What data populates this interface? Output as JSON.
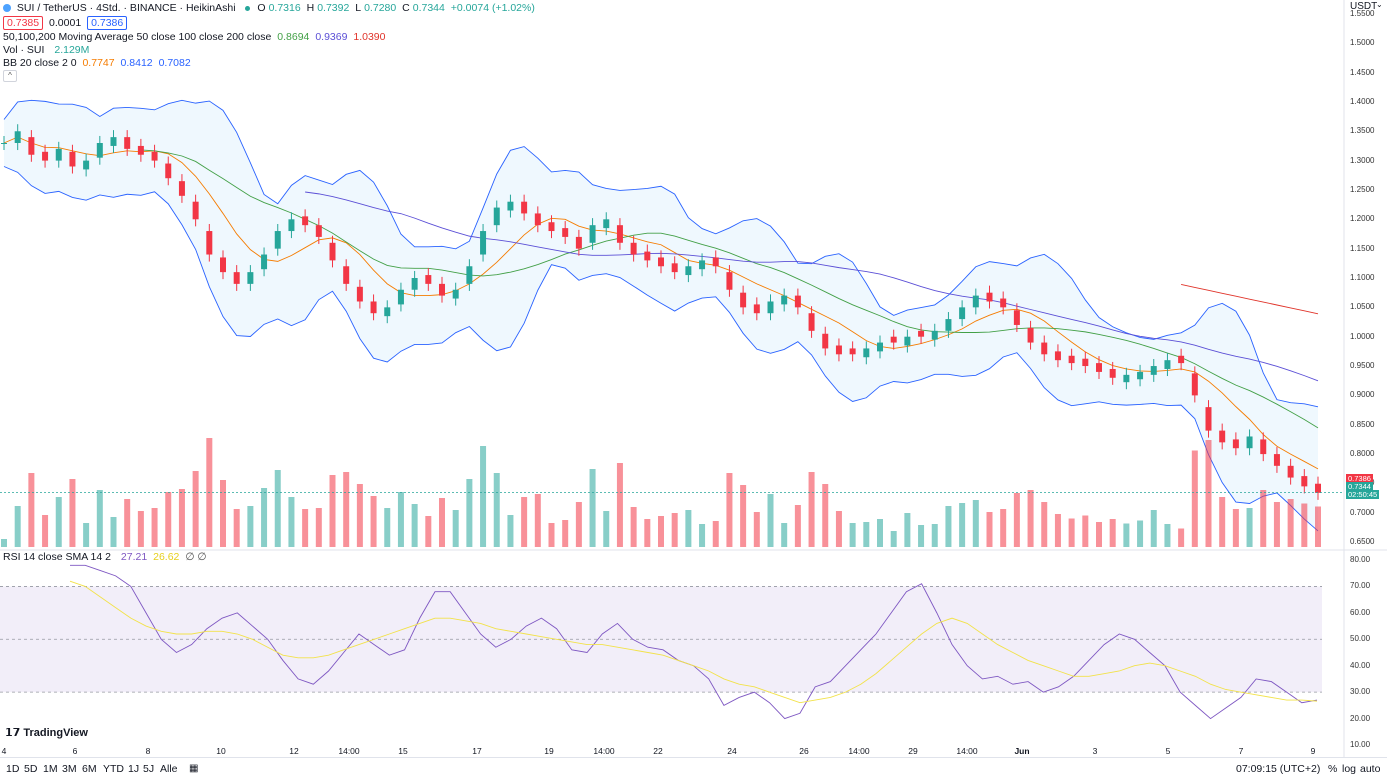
{
  "header": {
    "symbol_title": "SUI / TetherUS · 4Std. · BINANCE · HeikinAshi",
    "bid": "0.7385",
    "spread": "0.0001",
    "ask": "0.7386",
    "ohlc": {
      "o_label": "O",
      "o": "0.7316",
      "h_label": "H",
      "h": "0.7392",
      "l_label": "L",
      "l": "0.7280",
      "c_label": "C",
      "c": "0.7344",
      "change": "+0.0074 (+1.02%)"
    },
    "currency": "USDT"
  },
  "indicators": {
    "ma": {
      "label": "50,100,200 Moving Average 50 close 100 close 200 close",
      "v50": "0.8694",
      "v100": "0.9369",
      "v200": "1.0390"
    },
    "vol": {
      "label": "Vol · SUI",
      "value": "2.129M"
    },
    "bb": {
      "label": "BB 20 close 2 0",
      "basis": "0.7747",
      "upper": "0.8412",
      "lower": "0.7082"
    },
    "rsi": {
      "label": "RSI 14 close SMA 14 2",
      "rsi": "27.21",
      "sma": "26.62",
      "extra": "∅ ∅"
    }
  },
  "price_badges": {
    "top": "0.7386",
    "mid": "0.7344",
    "timer": "02:50:45"
  },
  "colors": {
    "up": "#26a69a",
    "down": "#f23645",
    "ma50": "#43a047",
    "ma100": "#5b4fd6",
    "ma200": "#e0342a",
    "bb_basis": "#f57c00",
    "bb_band": "#2962ff",
    "rsi_line": "#7e57c2",
    "rsi_sma": "#f2e24a"
  },
  "chart_data": [
    {
      "type": "candlestick",
      "title": "SUI / TetherUS · 4Std. · BINANCE · HeikinAshi",
      "y_axis": {
        "scale": "linear",
        "ylim": [
          0.64,
          1.56
        ],
        "ticks": [
          "1.5500",
          "1.5000",
          "1.4500",
          "1.4000",
          "1.3500",
          "1.3000",
          "1.2500",
          "1.2000",
          "1.1500",
          "1.1000",
          "1.0500",
          "1.0000",
          "0.9500",
          "0.9000",
          "0.8500",
          "0.8000",
          "0.7500",
          "0.7000",
          "0.6500"
        ]
      },
      "x_ticks": [
        "4",
        "6",
        "8",
        "10",
        "12",
        "14:00",
        "15",
        "17",
        "19",
        "14:00",
        "22",
        "24",
        "26",
        "14:00",
        "29",
        "14:00",
        "Jun",
        "3",
        "5",
        "7",
        "9"
      ],
      "close_series_approx": [
        1.33,
        1.35,
        1.31,
        1.3,
        1.32,
        1.29,
        1.3,
        1.33,
        1.34,
        1.32,
        1.31,
        1.3,
        1.27,
        1.24,
        1.2,
        1.14,
        1.11,
        1.09,
        1.11,
        1.14,
        1.18,
        1.2,
        1.19,
        1.17,
        1.13,
        1.09,
        1.06,
        1.04,
        1.05,
        1.08,
        1.1,
        1.09,
        1.07,
        1.08,
        1.12,
        1.18,
        1.22,
        1.23,
        1.21,
        1.19,
        1.18,
        1.17,
        1.15,
        1.19,
        1.2,
        1.16,
        1.14,
        1.13,
        1.12,
        1.11,
        1.12,
        1.13,
        1.12,
        1.08,
        1.05,
        1.04,
        1.06,
        1.07,
        1.05,
        1.01,
        0.98,
        0.97,
        0.97,
        0.98,
        0.99,
        0.99,
        1.0,
        1.0,
        1.01,
        1.03,
        1.05,
        1.07,
        1.06,
        1.05,
        1.02,
        0.99,
        0.97,
        0.96,
        0.955,
        0.95,
        0.94,
        0.93,
        0.935,
        0.94,
        0.95,
        0.96,
        0.955,
        0.9,
        0.84,
        0.82,
        0.81,
        0.83,
        0.8,
        0.78,
        0.76,
        0.745,
        0.734
      ],
      "moving_averages": {
        "ma50_last": 0.8694,
        "ma100_last": 0.9369,
        "ma200_last": 1.039
      },
      "bollinger": {
        "basis_last": 0.7747,
        "upper_last": 0.8412,
        "lower_last": 0.7082
      },
      "last_price": 0.7344
    },
    {
      "type": "bar",
      "title": "Vol · SUI",
      "last_value": "2.129M"
    },
    {
      "type": "line",
      "title": "RSI 14 close SMA 14 2",
      "y_axis": {
        "ylim": [
          10,
          80
        ],
        "ticks": [
          "80.00",
          "70.00",
          "60.00",
          "50.00",
          "40.00",
          "30.00",
          "20.00",
          "10.00"
        ]
      },
      "overbought": 70,
      "oversold": 30,
      "series": [
        {
          "name": "RSI",
          "values": [
            78,
            78,
            76,
            74,
            70,
            60,
            50,
            45,
            48,
            54,
            58,
            60,
            55,
            50,
            42,
            35,
            33,
            38,
            45,
            52,
            48,
            44,
            46,
            58,
            68,
            68,
            60,
            52,
            47,
            50,
            55,
            58,
            54,
            46,
            45,
            52,
            56,
            50,
            47,
            46,
            42,
            40,
            35,
            25,
            28,
            30,
            26,
            20,
            22,
            32,
            34,
            40,
            46,
            52,
            60,
            68,
            71,
            60,
            48,
            40,
            35,
            36,
            33,
            34,
            30,
            32,
            36,
            42,
            48,
            52,
            50,
            45,
            40,
            30,
            25,
            20,
            24,
            28,
            35,
            34,
            30,
            26,
            27
          ]
        },
        {
          "name": "SMA",
          "values": [
            72,
            70,
            66,
            62,
            58,
            55,
            53,
            52,
            52,
            53,
            53,
            52,
            50,
            47,
            44,
            43,
            43,
            44,
            46,
            48,
            50,
            52,
            54,
            56,
            58,
            58,
            57,
            56,
            54,
            53,
            52,
            51,
            50,
            49,
            48,
            48,
            47,
            46,
            45,
            44,
            42,
            40,
            38,
            35,
            33,
            32,
            30,
            28,
            26,
            27,
            28,
            30,
            33,
            37,
            42,
            47,
            52,
            56,
            58,
            56,
            52,
            48,
            45,
            42,
            40,
            38,
            36,
            36,
            37,
            38,
            40,
            41,
            40,
            38,
            36,
            33,
            31,
            30,
            29,
            28,
            27,
            27,
            26.6
          ]
        }
      ],
      "last_rsi": 27.21,
      "last_sma": 26.62
    }
  ],
  "bottombar": {
    "ranges": [
      "1D",
      "5D",
      "1M",
      "3M",
      "6M",
      "YTD",
      "1J",
      "5J",
      "Alle"
    ],
    "time": "07:09:15 (UTC+2)",
    "percent": "%",
    "log": "log",
    "auto": "auto"
  },
  "branding": "TradingView"
}
